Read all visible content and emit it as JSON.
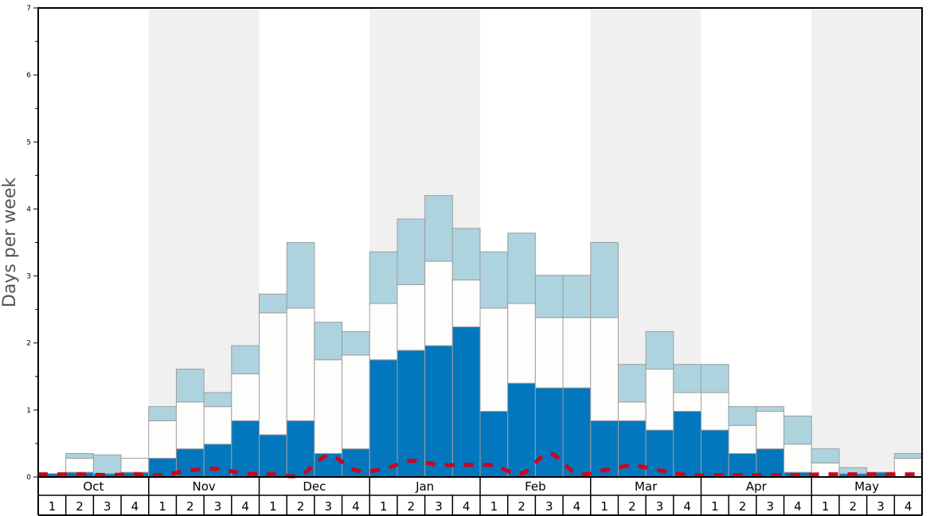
{
  "chart_data": {
    "type": "bar",
    "ylabel": "Days per week",
    "ylim": [
      0,
      7
    ],
    "yticks": [
      "0",
      "1",
      "2",
      "3",
      "4",
      "5",
      "6",
      "7"
    ],
    "months": [
      "Oct",
      "Nov",
      "Dec",
      "Jan",
      "Feb",
      "Mar",
      "Apr",
      "May"
    ],
    "weeks": [
      "1",
      "2",
      "3",
      "4"
    ],
    "stacked": true,
    "colors": {
      "bottom": "#0277bd",
      "middle": "#fdfdfb",
      "top": "#add3df",
      "line": "#d0021b",
      "shade": "#f0f0f0"
    },
    "series": [
      {
        "values": [
          0.05,
          0.07,
          0.05,
          0.07,
          0.28,
          0.42,
          0.49,
          0.84,
          0.63,
          0.84,
          0.35,
          0.42,
          1.75,
          1.89,
          1.96,
          2.24,
          0.98,
          1.4,
          1.33,
          1.33,
          0.84,
          0.84,
          0.7,
          0.98,
          0.7,
          0.35,
          0.42,
          0.07,
          0.0,
          0.05,
          0.07,
          0.0
        ]
      },
      {
        "values": [
          0.0,
          0.21,
          0.0,
          0.21,
          0.56,
          0.7,
          0.56,
          0.7,
          1.82,
          1.68,
          1.4,
          1.4,
          0.84,
          0.98,
          1.26,
          0.7,
          1.54,
          1.19,
          1.05,
          1.05,
          1.54,
          0.28,
          0.91,
          0.28,
          0.56,
          0.42,
          0.56,
          0.42,
          0.21,
          0.0,
          0.0,
          0.28
        ]
      },
      {
        "values": [
          0.0,
          0.07,
          0.28,
          0.0,
          0.21,
          0.49,
          0.21,
          0.42,
          0.28,
          0.98,
          0.56,
          0.35,
          0.77,
          0.98,
          0.98,
          0.77,
          0.84,
          1.05,
          0.63,
          0.63,
          1.12,
          0.56,
          0.56,
          0.42,
          0.42,
          0.28,
          0.07,
          0.42,
          0.21,
          0.09,
          0.0,
          0.07
        ]
      },
      {
        "values": [
          0.04,
          0.04,
          0.03,
          0.04,
          0.03,
          0.1,
          0.12,
          0.05,
          0.04,
          0.03,
          0.32,
          0.1,
          0.12,
          0.24,
          0.18,
          0.18,
          0.17,
          0.05,
          0.35,
          0.05,
          0.1,
          0.17,
          0.1,
          0.03,
          0.03,
          0.03,
          0.03,
          0.03,
          0.04,
          0.04,
          0.04,
          0.04
        ]
      }
    ]
  }
}
